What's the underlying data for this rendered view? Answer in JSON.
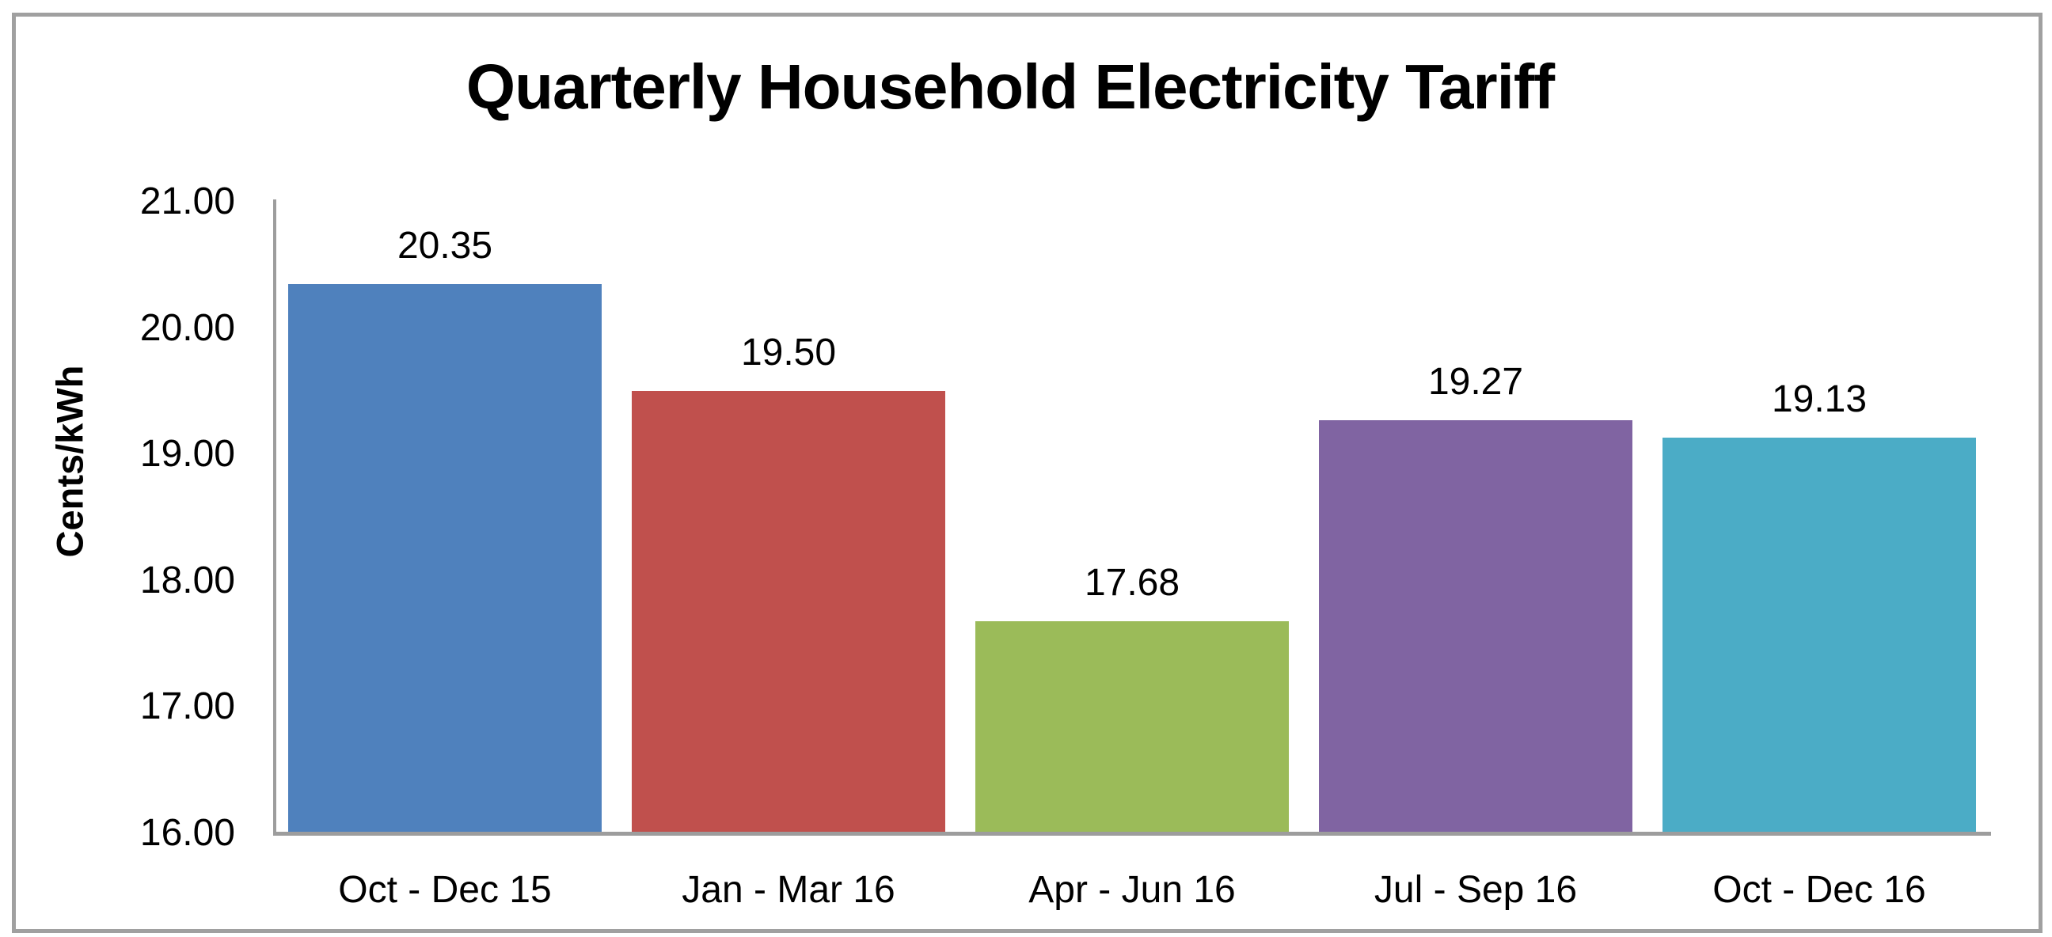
{
  "chart_data": {
    "type": "bar",
    "title": "Quarterly Household Electricity Tariff",
    "ylabel": "Cents/kWh",
    "xlabel": "",
    "categories": [
      "Oct - Dec 15",
      "Jan - Mar 16",
      "Apr - Jun 16",
      "Jul - Sep 16",
      "Oct - Dec 16"
    ],
    "values": [
      20.35,
      19.5,
      17.68,
      19.27,
      19.13
    ],
    "value_labels": [
      "20.35",
      "19.50",
      "17.68",
      "19.27",
      "19.13"
    ],
    "bar_colors": [
      "#4F81BD",
      "#C0504D",
      "#9BBB59",
      "#8064A2",
      "#4BACC6"
    ],
    "ylim": [
      16,
      21
    ],
    "ytick_values": [
      16,
      17,
      18,
      19,
      20,
      21
    ],
    "ytick_labels": [
      "16.00",
      "17.00",
      "18.00",
      "19.00",
      "20.00",
      "21.00"
    ],
    "grid": false,
    "legend_position": "none",
    "data_labels_position": "above-bars",
    "colors": {
      "axis": "#9D9D9D",
      "frame_border": "#A0A0A0",
      "background": "#FFFFFF",
      "text": "#000000"
    }
  }
}
